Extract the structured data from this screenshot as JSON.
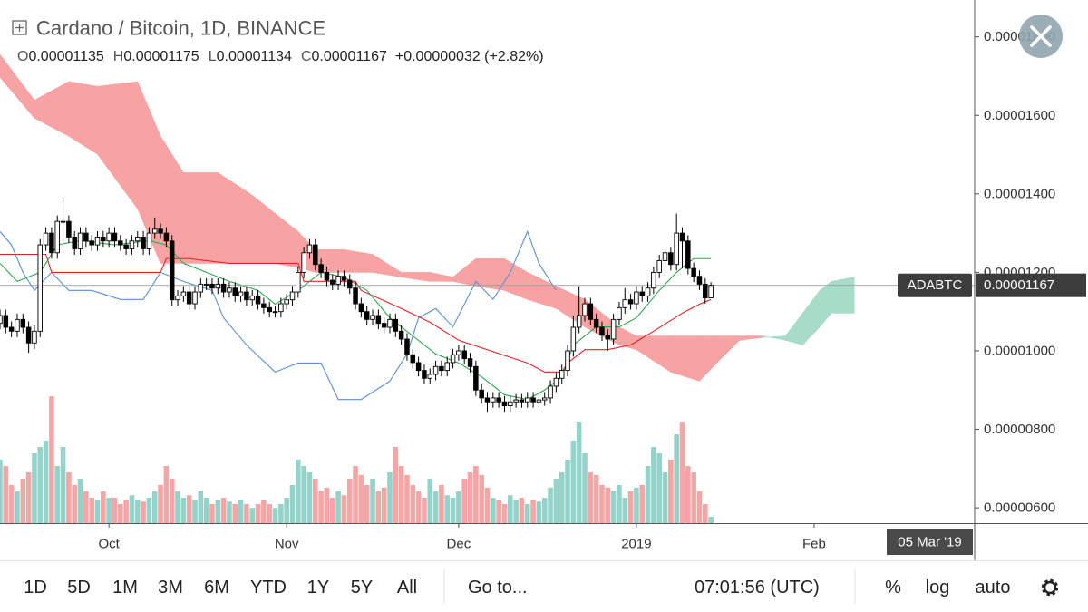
{
  "chart_data": {
    "type": "candlestick",
    "title": "Cardano / Bitcoin, 1D, BINANCE",
    "ohlc_legend": [
      {
        "label": "O",
        "value": "0.00001135"
      },
      {
        "label": "H",
        "value": "0.00001175"
      },
      {
        "label": "L",
        "value": "0.00001134"
      },
      {
        "label": "C",
        "value": "0.00001167"
      }
    ],
    "change": "+0.00000032 (+2.82%)",
    "symbol": "ADABTC",
    "last_label": "0.00001167",
    "time_label": "05 Mar '19",
    "xlim": [
      0,
      170
    ],
    "xticks": [
      {
        "value": 19,
        "label": "Oct"
      },
      {
        "value": 50,
        "label": "Nov"
      },
      {
        "value": 80,
        "label": "Dec"
      },
      {
        "value": 111,
        "label": "2019"
      },
      {
        "value": 142,
        "label": "Feb"
      }
    ],
    "ylim": [
      5.61e-06,
      1.894e-05
    ],
    "yticks": [
      {
        "value": 6e-06,
        "label": "0.00000600"
      },
      {
        "value": 8e-06,
        "label": "0.00000800"
      },
      {
        "value": 1e-05,
        "label": "0.00001000"
      },
      {
        "value": 1.2e-05,
        "label": "0.00001200"
      },
      {
        "value": 1.4e-05,
        "label": "0.00001400"
      },
      {
        "value": 1.6e-05,
        "label": "0.00001600"
      },
      {
        "value": 1.8e-05,
        "label": "0.00001800"
      }
    ],
    "up_color": "#ffffff",
    "down_color": "#000000",
    "candle_border": "#000000",
    "ohlc": [
      [
        1.07e-05,
        1.105e-05,
        1.055e-05,
        1.09e-05
      ],
      [
        1.09e-05,
        1.105e-05,
        1.045e-05,
        1.06e-05
      ],
      [
        1.06e-05,
        1.075e-05,
        1.035e-05,
        1.05e-05
      ],
      [
        1.05e-05,
        1.095e-05,
        1.035e-05,
        1.08e-05
      ],
      [
        1.08e-05,
        1.095e-05,
        1.045e-05,
        1.06e-05
      ],
      [
        1.06e-05,
        1.075e-05,
        9.95e-06,
        1.02e-05
      ],
      [
        1.02e-05,
        1.065e-05,
        1.005e-05,
        1.05e-05
      ],
      [
        1.05e-05,
        1.285e-05,
        1.035e-05,
        1.27e-05
      ],
      [
        1.27e-05,
        1.315e-05,
        1.255e-05,
        1.3e-05
      ],
      [
        1.3e-05,
        1.315e-05,
        1.235e-05,
        1.25e-05
      ],
      [
        1.25e-05,
        1.345e-05,
        1.235e-05,
        1.33e-05
      ],
      [
        1.33e-05,
        1.392e-05,
        1.25e-05,
        1.33e-05
      ],
      [
        1.33e-05,
        1.345e-05,
        1.275e-05,
        1.29e-05
      ],
      [
        1.29e-05,
        1.305e-05,
        1.245e-05,
        1.26e-05
      ],
      [
        1.26e-05,
        1.315e-05,
        1.245e-05,
        1.3e-05
      ],
      [
        1.3e-05,
        1.315e-05,
        1.265e-05,
        1.28e-05
      ],
      [
        1.28e-05,
        1.295e-05,
        1.255e-05,
        1.27e-05
      ],
      [
        1.27e-05,
        1.305e-05,
        1.255e-05,
        1.29e-05
      ],
      [
        1.29e-05,
        1.305e-05,
        1.265e-05,
        1.28e-05
      ],
      [
        1.28e-05,
        1.315e-05,
        1.265e-05,
        1.3e-05
      ],
      [
        1.3e-05,
        1.315e-05,
        1.265e-05,
        1.28e-05
      ],
      [
        1.28e-05,
        1.295e-05,
        1.255e-05,
        1.27e-05
      ],
      [
        1.27e-05,
        1.285e-05,
        1.245e-05,
        1.26e-05
      ],
      [
        1.26e-05,
        1.295e-05,
        1.245e-05,
        1.28e-05
      ],
      [
        1.28e-05,
        1.305e-05,
        1.265e-05,
        1.29e-05
      ],
      [
        1.29e-05,
        1.305e-05,
        1.245e-05,
        1.26e-05
      ],
      [
        1.26e-05,
        1.315e-05,
        1.245e-05,
        1.3e-05
      ],
      [
        1.3e-05,
        1.34e-05,
        1.285e-05,
        1.31e-05
      ],
      [
        1.31e-05,
        1.325e-05,
        1.285e-05,
        1.3e-05
      ],
      [
        1.3e-05,
        1.315e-05,
        1.265e-05,
        1.28e-05
      ],
      [
        1.28e-05,
        1.295e-05,
        1.115e-05,
        1.13e-05
      ],
      [
        1.13e-05,
        1.155e-05,
        1.115e-05,
        1.14e-05
      ],
      [
        1.14e-05,
        1.165e-05,
        1.125e-05,
        1.15e-05
      ],
      [
        1.15e-05,
        1.165e-05,
        1.105e-05,
        1.12e-05
      ],
      [
        1.12e-05,
        1.165e-05,
        1.105e-05,
        1.15e-05
      ],
      [
        1.15e-05,
        1.185e-05,
        1.135e-05,
        1.17e-05
      ],
      [
        1.17e-05,
        1.185e-05,
        1.155e-05,
        1.17e-05
      ],
      [
        1.17e-05,
        1.185e-05,
        1.145e-05,
        1.16e-05
      ],
      [
        1.16e-05,
        1.185e-05,
        1.145e-05,
        1.17e-05
      ],
      [
        1.17e-05,
        1.185e-05,
        1.135e-05,
        1.15e-05
      ],
      [
        1.15e-05,
        1.175e-05,
        1.135e-05,
        1.16e-05
      ],
      [
        1.16e-05,
        1.175e-05,
        1.125e-05,
        1.14e-05
      ],
      [
        1.14e-05,
        1.165e-05,
        1.125e-05,
        1.15e-05
      ],
      [
        1.15e-05,
        1.165e-05,
        1.115e-05,
        1.13e-05
      ],
      [
        1.13e-05,
        1.155e-05,
        1.115e-05,
        1.14e-05
      ],
      [
        1.14e-05,
        1.155e-05,
        1.105e-05,
        1.12e-05
      ],
      [
        1.12e-05,
        1.135e-05,
        1.095e-05,
        1.11e-05
      ],
      [
        1.11e-05,
        1.125e-05,
        1.085e-05,
        1.1e-05
      ],
      [
        1.1e-05,
        1.115e-05,
        1.085e-05,
        1.1e-05
      ],
      [
        1.1e-05,
        1.135e-05,
        1.085e-05,
        1.12e-05
      ],
      [
        1.12e-05,
        1.145e-05,
        1.105e-05,
        1.13e-05
      ],
      [
        1.13e-05,
        1.165e-05,
        1.115e-05,
        1.15e-05
      ],
      [
        1.15e-05,
        1.215e-05,
        1.135e-05,
        1.2e-05
      ],
      [
        1.2e-05,
        1.265e-05,
        1.185e-05,
        1.25e-05
      ],
      [
        1.25e-05,
        1.285e-05,
        1.235e-05,
        1.27e-05
      ],
      [
        1.27e-05,
        1.285e-05,
        1.205e-05,
        1.22e-05
      ],
      [
        1.22e-05,
        1.235e-05,
        1.185e-05,
        1.2e-05
      ],
      [
        1.2e-05,
        1.215e-05,
        1.165e-05,
        1.18e-05
      ],
      [
        1.18e-05,
        1.195e-05,
        1.155e-05,
        1.17e-05
      ],
      [
        1.17e-05,
        1.205e-05,
        1.155e-05,
        1.19e-05
      ],
      [
        1.19e-05,
        1.205e-05,
        1.165e-05,
        1.18e-05
      ],
      [
        1.18e-05,
        1.195e-05,
        1.145e-05,
        1.16e-05
      ],
      [
        1.16e-05,
        1.175e-05,
        1.105e-05,
        1.12e-05
      ],
      [
        1.12e-05,
        1.135e-05,
        1.085e-05,
        1.1e-05
      ],
      [
        1.1e-05,
        1.115e-05,
        1.065e-05,
        1.08e-05
      ],
      [
        1.08e-05,
        1.105e-05,
        1.065e-05,
        1.09e-05
      ],
      [
        1.09e-05,
        1.105e-05,
        1.055e-05,
        1.07e-05
      ],
      [
        1.07e-05,
        1.085e-05,
        1.045e-05,
        1.06e-05
      ],
      [
        1.06e-05,
        1.095e-05,
        1.045e-05,
        1.08e-05
      ],
      [
        1.08e-05,
        1.095e-05,
        1.035e-05,
        1.05e-05
      ],
      [
        1.05e-05,
        1.065e-05,
        1.015e-05,
        1.03e-05
      ],
      [
        1.03e-05,
        1.045e-05,
        9.75e-06,
        9.9e-06
      ],
      [
        9.9e-06,
        1.005e-05,
        9.55e-06,
        9.7e-06
      ],
      [
        9.7e-06,
        9.85e-06,
        9.35e-06,
        9.5e-06
      ],
      [
        9.5e-06,
        9.65e-06,
        9.15e-06,
        9.3e-06
      ],
      [
        9.3e-06,
        9.55e-06,
        9.15e-06,
        9.4e-06
      ],
      [
        9.4e-06,
        9.75e-06,
        9.25e-06,
        9.6e-06
      ],
      [
        9.6e-06,
        9.75e-06,
        9.35e-06,
        9.5e-06
      ],
      [
        9.5e-06,
        9.85e-06,
        9.35e-06,
        9.7e-06
      ],
      [
        9.7e-06,
        1.005e-05,
        9.55e-06,
        9.9e-06
      ],
      [
        9.9e-06,
        1.015e-05,
        9.75e-06,
        1e-05
      ],
      [
        1e-05,
        1.015e-05,
        9.65e-06,
        9.8e-06
      ],
      [
        9.8e-06,
        9.95e-06,
        9.45e-06,
        9.6e-06
      ],
      [
        9.6e-06,
        9.75e-06,
        8.85e-06,
        9e-06
      ],
      [
        9e-06,
        9.15e-06,
        8.65e-06,
        8.8e-06
      ],
      [
        8.8e-06,
        8.95e-06,
        8.45e-06,
        8.7e-06
      ],
      [
        8.7e-06,
        8.95e-06,
        8.55e-06,
        8.8e-06
      ],
      [
        8.8e-06,
        8.95e-06,
        8.55e-06,
        8.7e-06
      ],
      [
        8.7e-06,
        8.85e-06,
        8.45e-06,
        8.6e-06
      ],
      [
        8.6e-06,
        8.85e-06,
        8.45e-06,
        8.7e-06
      ],
      [
        8.7e-06,
        8.9e-06,
        8.55e-06,
        8.75e-06
      ],
      [
        8.75e-06,
        8.9e-06,
        8.55e-06,
        8.7e-06
      ],
      [
        8.7e-06,
        8.95e-06,
        8.55e-06,
        8.8e-06
      ],
      [
        8.8e-06,
        8.95e-06,
        8.55e-06,
        8.7e-06
      ],
      [
        8.7e-06,
        8.9e-06,
        8.55e-06,
        8.75e-06
      ],
      [
        8.75e-06,
        8.95e-06,
        8.6e-06,
        8.8e-06
      ],
      [
        8.8e-06,
        9.25e-06,
        8.65e-06,
        9.1e-06
      ],
      [
        9.1e-06,
        9.45e-06,
        8.95e-06,
        9.3e-06
      ],
      [
        9.3e-06,
        9.65e-06,
        9.15e-06,
        9.5e-06
      ],
      [
        9.5e-06,
        1.015e-05,
        9.35e-06,
        1e-05
      ],
      [
        1e-05,
        1.09e-05,
        9.85e-06,
        1.06e-05
      ],
      [
        1.06e-05,
        1.165e-05,
        1.045e-05,
        1.09e-05
      ],
      [
        1.09e-05,
        1.135e-05,
        1.075e-05,
        1.12e-05
      ],
      [
        1.12e-05,
        1.135e-05,
        1.065e-05,
        1.08e-05
      ],
      [
        1.08e-05,
        1.095e-05,
        1.045e-05,
        1.06e-05
      ],
      [
        1.06e-05,
        1.075e-05,
        1.025e-05,
        1.04e-05
      ],
      [
        1.04e-05,
        1.055e-05,
        1e-05,
        1.03e-05
      ],
      [
        1.03e-05,
        1.095e-05,
        1.015e-05,
        1.08e-05
      ],
      [
        1.08e-05,
        1.125e-05,
        1.065e-05,
        1.11e-05
      ],
      [
        1.11e-05,
        1.16e-05,
        1.095e-05,
        1.13e-05
      ],
      [
        1.13e-05,
        1.145e-05,
        1.105e-05,
        1.12e-05
      ],
      [
        1.12e-05,
        1.165e-05,
        1.105e-05,
        1.15e-05
      ],
      [
        1.15e-05,
        1.165e-05,
        1.125e-05,
        1.14e-05
      ],
      [
        1.14e-05,
        1.175e-05,
        1.125e-05,
        1.16e-05
      ],
      [
        1.16e-05,
        1.215e-05,
        1.145e-05,
        1.2e-05
      ],
      [
        1.2e-05,
        1.245e-05,
        1.185e-05,
        1.23e-05
      ],
      [
        1.23e-05,
        1.265e-05,
        1.215e-05,
        1.25e-05
      ],
      [
        1.25e-05,
        1.265e-05,
        1.205e-05,
        1.22e-05
      ],
      [
        1.22e-05,
        1.35e-05,
        1.205e-05,
        1.3e-05
      ],
      [
        1.3e-05,
        1.315e-05,
        1.21e-05,
        1.28e-05
      ],
      [
        1.28e-05,
        1.295e-05,
        1.195e-05,
        1.21e-05
      ],
      [
        1.21e-05,
        1.225e-05,
        1.175e-05,
        1.19e-05
      ],
      [
        1.19e-05,
        1.205e-05,
        1.155e-05,
        1.17e-05
      ],
      [
        1.17e-05,
        1.185e-05,
        1.12e-05,
        1.135e-05
      ],
      [
        1.135e-05,
        1.175e-05,
        1.134e-05,
        1.167e-05
      ]
    ],
    "volume_lim": [
      0,
      100
    ],
    "volume_up_color": "#93d3c9",
    "volume_down_color": "#f4a6a6",
    "volume": [
      50,
      45,
      30,
      25,
      35,
      40,
      55,
      60,
      65,
      100,
      45,
      60,
      40,
      30,
      35,
      25,
      20,
      18,
      25,
      20,
      20,
      15,
      18,
      22,
      18,
      17,
      20,
      25,
      30,
      45,
      35,
      25,
      20,
      22,
      18,
      25,
      20,
      15,
      18,
      20,
      17,
      15,
      18,
      15,
      12,
      15,
      18,
      15,
      12,
      15,
      20,
      30,
      50,
      45,
      40,
      35,
      25,
      28,
      20,
      25,
      22,
      35,
      45,
      38,
      30,
      35,
      25,
      28,
      40,
      60,
      45,
      38,
      30,
      25,
      20,
      35,
      25,
      30,
      22,
      20,
      25,
      35,
      40,
      45,
      38,
      28,
      20,
      18,
      15,
      22,
      18,
      20,
      15,
      18,
      17,
      20,
      28,
      35,
      40,
      50,
      65,
      80,
      55,
      40,
      38,
      30,
      28,
      25,
      30,
      20,
      25,
      28,
      30,
      45,
      60,
      55,
      40,
      50,
      70,
      80,
      45,
      40,
      25,
      15,
      5
    ],
    "cloud": {
      "up_color": "#a6dcc8",
      "down_color": "#f8a3a3",
      "x": [
        0,
        6,
        12,
        17,
        24,
        28,
        32,
        38,
        44,
        48,
        52,
        55,
        60,
        65,
        70,
        75,
        79,
        83,
        88,
        92,
        97,
        102,
        108,
        111,
        117,
        122,
        125,
        129,
        133,
        137,
        140,
        143,
        145,
        149
      ],
      "span_a": [
        1.697e-05,
        1.593e-05,
        1.547e-05,
        1.501e-05,
        1.362e-05,
        1.223e-05,
        1.223e-05,
        1.223e-05,
        1.223e-05,
        1.223e-05,
        1.212e-05,
        1.2e-05,
        1.2e-05,
        1.2e-05,
        1.188e-05,
        1.177e-05,
        1.177e-05,
        1.165e-05,
        1.154e-05,
        1.131e-05,
        1.108e-05,
        1.061e-05,
        1.015e-05,
        1.003e-05,
        9.46e-06,
        9.23e-06,
        9.69e-06,
        1.027e-05,
        1.034e-05,
        1.038e-05,
        1.096e-05,
        1.154e-05,
        1.177e-05,
        1.188e-05
      ],
      "span_b": [
        1.755e-05,
        1.639e-05,
        1.686e-05,
        1.674e-05,
        1.686e-05,
        1.547e-05,
        1.454e-05,
        1.454e-05,
        1.397e-05,
        1.35e-05,
        1.304e-05,
        1.258e-05,
        1.258e-05,
        1.246e-05,
        1.2e-05,
        1.2e-05,
        1.188e-05,
        1.235e-05,
        1.235e-05,
        1.2e-05,
        1.165e-05,
        1.131e-05,
        1.061e-05,
        1.038e-05,
        1.038e-05,
        1.038e-05,
        1.038e-05,
        1.038e-05,
        1.038e-05,
        1.027e-05,
        1.015e-05,
        1.061e-05,
        1.096e-05,
        1.096e-05
      ]
    },
    "lines": [
      {
        "color": "#5b8fd6",
        "x": [
          0,
          2,
          4,
          6,
          9,
          12,
          16,
          21,
          25,
          28,
          32,
          37,
          39,
          43,
          48,
          52,
          56,
          59,
          63,
          68,
          71,
          73,
          76,
          79,
          83,
          86,
          89,
          92,
          94,
          95,
          97
        ],
        "values": [
          1.304e-05,
          1.27e-05,
          1.2e-05,
          1.154e-05,
          1.2e-05,
          1.154e-05,
          1.154e-05,
          1.131e-05,
          1.131e-05,
          1.2e-05,
          1.177e-05,
          1.154e-05,
          1.084e-05,
          1.015e-05,
          9.46e-06,
          9.69e-06,
          9.69e-06,
          8.76e-06,
          8.76e-06,
          9.23e-06,
          9.92e-06,
          1.084e-05,
          1.108e-05,
          1.061e-05,
          1.177e-05,
          1.131e-05,
          1.2e-05,
          1.304e-05,
          1.223e-05,
          1.2e-05,
          1.154e-05
        ]
      },
      {
        "color": "#e02424",
        "x": [
          0,
          8,
          9,
          28,
          29,
          33,
          40,
          52,
          53,
          62,
          63,
          70,
          75,
          80,
          92,
          95,
          98,
          99,
          102,
          106,
          110,
          114,
          119,
          122,
          124
        ],
        "values": [
          1.246e-05,
          1.246e-05,
          1.2e-05,
          1.2e-05,
          1.235e-05,
          1.235e-05,
          1.223e-05,
          1.223e-05,
          1.177e-05,
          1.177e-05,
          1.154e-05,
          1.108e-05,
          1.073e-05,
          1.027e-05,
          9.69e-06,
          9.46e-06,
          9.46e-06,
          9.69e-06,
          1.003e-05,
          1.003e-05,
          1.015e-05,
          1.05e-05,
          1.096e-05,
          1.119e-05,
          1.131e-05
        ]
      },
      {
        "color": "#2ea84f",
        "x": [
          0,
          3,
          7,
          10,
          14,
          20,
          26,
          29,
          32,
          36,
          40,
          45,
          48,
          52,
          56,
          60,
          64,
          68,
          72,
          76,
          80,
          84,
          88,
          92,
          95,
          98,
          100,
          104,
          108,
          111,
          115,
          118,
          121,
          124
        ],
        "values": [
          1.223e-05,
          1.177e-05,
          1.2e-05,
          1.27e-05,
          1.281e-05,
          1.27e-05,
          1.281e-05,
          1.27e-05,
          1.223e-05,
          1.2e-05,
          1.177e-05,
          1.154e-05,
          1.119e-05,
          1.154e-05,
          1.2e-05,
          1.188e-05,
          1.154e-05,
          1.084e-05,
          1.038e-05,
          9.92e-06,
          9.69e-06,
          9.34e-06,
          8.88e-06,
          8.76e-06,
          9e-06,
          9.34e-06,
          1.015e-05,
          1.061e-05,
          1.061e-05,
          1.084e-05,
          1.154e-05,
          1.2e-05,
          1.235e-05,
          1.235e-05
        ]
      }
    ]
  },
  "toolbar": {
    "ranges": [
      "1D",
      "5D",
      "1M",
      "3M",
      "6M",
      "YTD",
      "1Y",
      "5Y",
      "All"
    ],
    "goto": "Go to...",
    "clock": "07:01:56 (UTC)",
    "options": [
      "%",
      "log",
      "auto"
    ]
  }
}
